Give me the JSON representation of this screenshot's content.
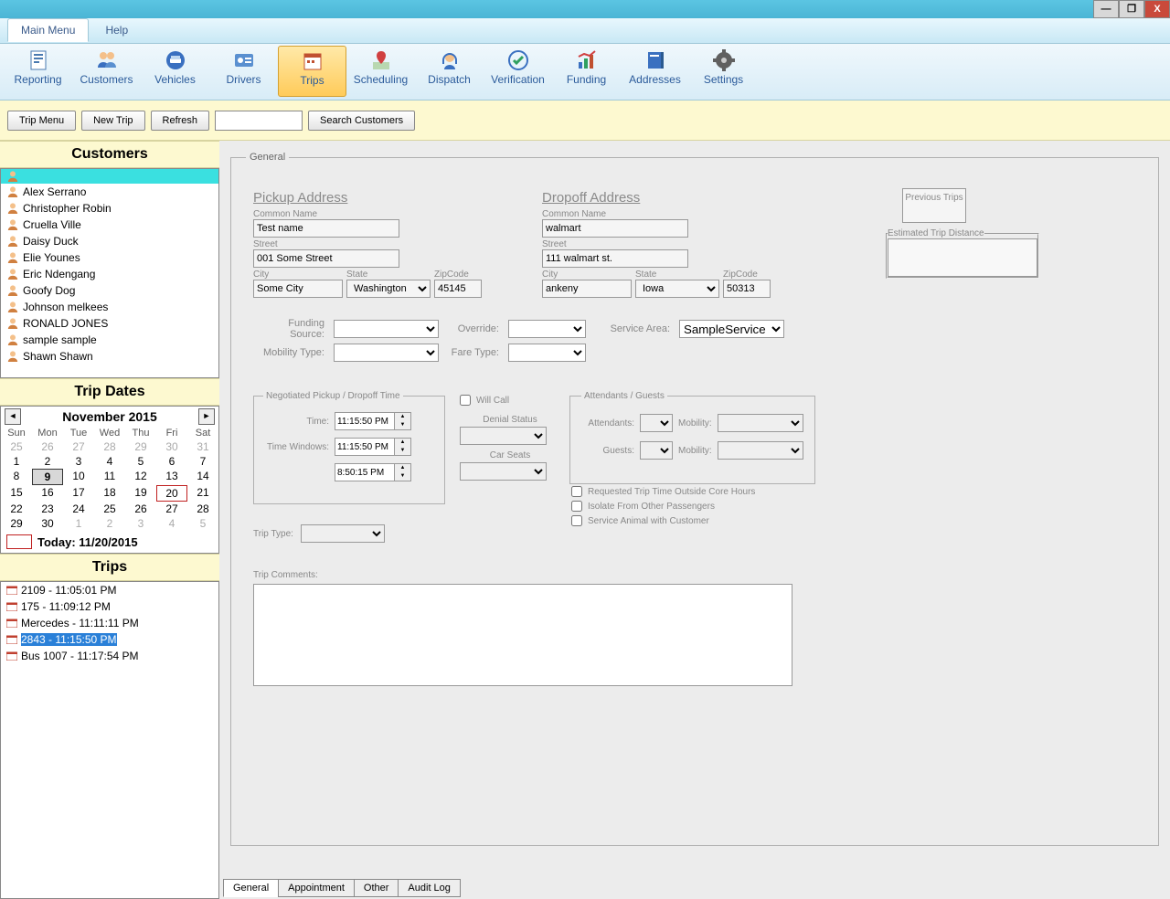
{
  "window": {
    "min": "—",
    "max": "❐",
    "close": "X"
  },
  "menu": {
    "items": [
      "Main Menu",
      "Help"
    ],
    "active": 0
  },
  "toolbar": {
    "items": [
      {
        "label": "Reporting",
        "icon": "report"
      },
      {
        "label": "Customers",
        "icon": "people"
      },
      {
        "label": "Vehicles",
        "icon": "car"
      },
      {
        "label": "Drivers",
        "icon": "id"
      },
      {
        "label": "Trips",
        "icon": "trips",
        "active": true
      },
      {
        "label": "Scheduling",
        "icon": "pin"
      },
      {
        "label": "Dispatch",
        "icon": "headset"
      },
      {
        "label": "Verification",
        "icon": "check"
      },
      {
        "label": "Funding",
        "icon": "chart"
      },
      {
        "label": "Addresses",
        "icon": "book"
      },
      {
        "label": "Settings",
        "icon": "gear"
      }
    ]
  },
  "actions": {
    "trip_menu": "Trip Menu",
    "new_trip": "New Trip",
    "refresh": "Refresh",
    "search_customers": "Search Customers"
  },
  "customers": {
    "header": "Customers",
    "list": [
      "",
      "Alex Serrano",
      "Christopher Robin",
      "Cruella Ville",
      "Daisy Duck",
      "Elie  Younes",
      "Eric Ndengang",
      "Goofy Dog",
      "Johnson melkees",
      "RONALD JONES",
      "sample sample",
      "Shawn Shawn"
    ],
    "selected": 0
  },
  "trip_dates": {
    "header": "Trip Dates",
    "month": "November 2015",
    "days": [
      "Sun",
      "Mon",
      "Tue",
      "Wed",
      "Thu",
      "Fri",
      "Sat"
    ],
    "weeks": [
      [
        {
          "n": 25,
          "dim": true
        },
        {
          "n": 26,
          "dim": true
        },
        {
          "n": 27,
          "dim": true
        },
        {
          "n": 28,
          "dim": true
        },
        {
          "n": 29,
          "dim": true
        },
        {
          "n": 30,
          "dim": true
        },
        {
          "n": 31,
          "dim": true
        }
      ],
      [
        {
          "n": 1
        },
        {
          "n": 2
        },
        {
          "n": 3
        },
        {
          "n": 4
        },
        {
          "n": 5
        },
        {
          "n": 6
        },
        {
          "n": 7
        }
      ],
      [
        {
          "n": 8
        },
        {
          "n": 9,
          "boxed": true
        },
        {
          "n": 10
        },
        {
          "n": 11
        },
        {
          "n": 12
        },
        {
          "n": 13
        },
        {
          "n": 14
        }
      ],
      [
        {
          "n": 15
        },
        {
          "n": 16
        },
        {
          "n": 17
        },
        {
          "n": 18
        },
        {
          "n": 19
        },
        {
          "n": 20,
          "today": true
        },
        {
          "n": 21
        }
      ],
      [
        {
          "n": 22
        },
        {
          "n": 23
        },
        {
          "n": 24
        },
        {
          "n": 25
        },
        {
          "n": 26
        },
        {
          "n": 27
        },
        {
          "n": 28
        }
      ],
      [
        {
          "n": 29
        },
        {
          "n": 30
        },
        {
          "n": 1,
          "dim": true
        },
        {
          "n": 2,
          "dim": true
        },
        {
          "n": 3,
          "dim": true
        },
        {
          "n": 4,
          "dim": true
        },
        {
          "n": 5,
          "dim": true
        }
      ]
    ],
    "today_label": "Today: 11/20/2015"
  },
  "trips": {
    "header": "Trips",
    "list": [
      "2109 - 11:05:01 PM",
      "175 - 11:09:12 PM",
      "Mercedes - 11:11:11 PM",
      "2843 - 11:15:50 PM",
      "Bus 1007 - 11:17:54 PM"
    ],
    "selected": 3
  },
  "general": {
    "legend": "General",
    "pickup": {
      "title": "Pickup Address",
      "common_label": "Common Name",
      "common": "Test name",
      "street_label": "Street",
      "street": "001 Some Street",
      "city_label": "City",
      "city": "Some City",
      "state_label": "State",
      "state": "Washington",
      "zip_label": "ZipCode",
      "zip": "45145"
    },
    "dropoff": {
      "title": "Dropoff Address",
      "common_label": "Common Name",
      "common": "walmart",
      "street_label": "Street",
      "street": "111 walmart st.",
      "city_label": "City",
      "city": "ankeny",
      "state_label": "State",
      "state": "Iowa",
      "zip_label": "ZipCode",
      "zip": "50313"
    },
    "prev_trips": "Previous Trips",
    "est_distance": "Estimated Trip Distance",
    "funding_source": "Funding Source:",
    "override": "Override:",
    "service_area": "Service Area:",
    "service_area_val": "SampleService",
    "mobility_type": "Mobility Type:",
    "fare_type": "Fare Type:",
    "neg_legend": "Negotiated  Pickup / Dropoff Time",
    "time_label": "Time:",
    "time_val": "11:15:50 PM",
    "time_windows_label": "Time Windows:",
    "tw1": "11:15:50 PM",
    "tw2": "8:50:15 PM",
    "will_call": "Will Call",
    "denial_status": "Denial Status",
    "car_seats": "Car Seats",
    "att_legend": "Attendants / Guests",
    "attendants": "Attendants:",
    "guests": "Guests:",
    "mobility": "Mobility:",
    "chk1": "Requested Trip Time Outside Core Hours",
    "chk2": "Isolate From Other Passengers",
    "chk3": "Service Animal with Customer",
    "trip_type": "Trip Type:",
    "trip_comments": "Trip Comments:"
  },
  "bottom_tabs": {
    "items": [
      "General",
      "Appointment",
      "Other",
      "Audit Log"
    ],
    "active": 0
  }
}
